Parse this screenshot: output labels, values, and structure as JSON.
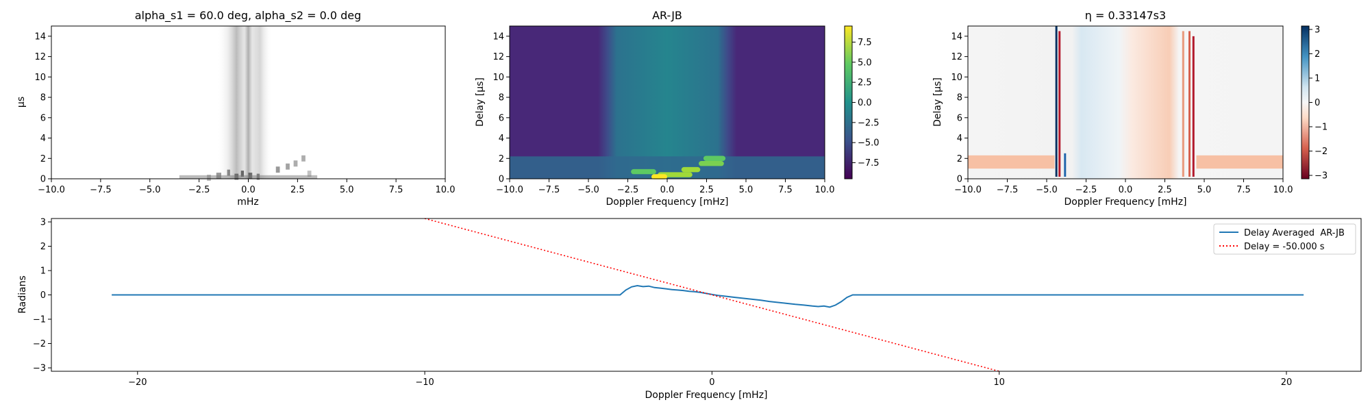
{
  "chart_data": [
    {
      "id": "panel1",
      "type": "heatmap",
      "title": "alpha_s1 = 60.0 deg, alpha_s2 = 0.0 deg",
      "xlabel": "mHz",
      "ylabel": "µs",
      "xlim": [
        -10.0,
        10.0
      ],
      "ylim": [
        0,
        15
      ],
      "xticks": [
        "−10.0",
        "−7.5",
        "−5.0",
        "−2.5",
        "0.0",
        "2.5",
        "5.0",
        "7.5",
        "10.0"
      ],
      "xtick_values": [
        -10,
        -7.5,
        -5,
        -2.5,
        0,
        2.5,
        5,
        7.5,
        10
      ],
      "yticks": [
        "0",
        "2",
        "4",
        "6",
        "8",
        "10",
        "12",
        "14"
      ],
      "ytick_values": [
        0,
        2,
        4,
        6,
        8,
        10,
        12,
        14
      ],
      "colormap": "Greys"
    },
    {
      "id": "panel2",
      "type": "heatmap",
      "title": "AR-JB",
      "xlabel": "Doppler Frequency [mHz]",
      "ylabel": "Delay [µs]",
      "xlim": [
        -10.0,
        10.0
      ],
      "ylim": [
        0,
        15
      ],
      "xticks": [
        "−10.0",
        "−7.5",
        "−5.0",
        "−2.5",
        "0.0",
        "2.5",
        "5.0",
        "7.5",
        "10.0"
      ],
      "xtick_values": [
        -10,
        -7.5,
        -5,
        -2.5,
        0,
        2.5,
        5,
        7.5,
        10
      ],
      "yticks": [
        "0",
        "2",
        "4",
        "6",
        "8",
        "10",
        "12",
        "14"
      ],
      "ytick_values": [
        0,
        2,
        4,
        6,
        8,
        10,
        12,
        14
      ],
      "colormap": "viridis",
      "colorbar": {
        "range": [
          -9.5,
          9.5
        ],
        "ticks": [
          "7.5",
          "5.0",
          "2.5",
          "0.0",
          "−2.5",
          "−5.0",
          "−7.5"
        ],
        "tick_values": [
          7.5,
          5.0,
          2.5,
          0.0,
          -2.5,
          -5.0,
          -7.5
        ]
      }
    },
    {
      "id": "panel3",
      "type": "heatmap",
      "title": "η = 0.33147s3",
      "xlabel": "Doppler Frequency [mHz]",
      "ylabel": "Delay [µs]",
      "xlim": [
        -10.0,
        10.0
      ],
      "ylim": [
        0,
        15
      ],
      "xticks": [
        "−10.0",
        "−7.5",
        "−5.0",
        "−2.5",
        "0.0",
        "2.5",
        "5.0",
        "7.5",
        "10.0"
      ],
      "xtick_values": [
        -10,
        -7.5,
        -5,
        -2.5,
        0,
        2.5,
        5,
        7.5,
        10
      ],
      "yticks": [
        "0",
        "2",
        "4",
        "6",
        "8",
        "10",
        "12",
        "14"
      ],
      "ytick_values": [
        0,
        2,
        4,
        6,
        8,
        10,
        12,
        14
      ],
      "colormap": "RdBu",
      "colorbar": {
        "range": [
          -3.14,
          3.14
        ],
        "ticks": [
          "3",
          "2",
          "1",
          "0",
          "−1",
          "−2",
          "−3"
        ],
        "tick_values": [
          3,
          2,
          1,
          0,
          -1,
          -2,
          -3
        ]
      }
    },
    {
      "id": "panel4",
      "type": "line",
      "xlabel": "Doppler Frequency [mHz]",
      "ylabel": "Radians",
      "xlim": [
        -23.0,
        22.6
      ],
      "ylim": [
        -3.14,
        3.14
      ],
      "xticks": [
        "−20",
        "−10",
        "0",
        "10",
        "20"
      ],
      "xtick_values": [
        -20,
        -10,
        0,
        10,
        20
      ],
      "yticks": [
        "3",
        "2",
        "1",
        "0",
        "−1",
        "−2",
        "−3"
      ],
      "ytick_values": [
        3,
        2,
        1,
        0,
        -1,
        -2,
        -3
      ],
      "legend": "top-right",
      "series": [
        {
          "name": "Delay Averaged  AR-JB",
          "color": "#1f77b4",
          "style": "solid",
          "x": [
            -20.9,
            -3.2,
            -3.0,
            -2.8,
            -2.6,
            -2.4,
            -2.2,
            -2.0,
            -1.8,
            -1.6,
            -1.4,
            -1.2,
            -1.0,
            -0.8,
            -0.6,
            -0.4,
            -0.2,
            0.0,
            0.2,
            0.5,
            0.8,
            1.1,
            1.4,
            1.7,
            2.0,
            2.3,
            2.6,
            2.9,
            3.2,
            3.5,
            3.7,
            3.9,
            4.1,
            4.3,
            4.5,
            4.7,
            4.9,
            20.6
          ],
          "y": [
            0.0,
            0.0,
            0.2,
            0.33,
            0.38,
            0.34,
            0.36,
            0.3,
            0.28,
            0.25,
            0.22,
            0.2,
            0.18,
            0.15,
            0.13,
            0.1,
            0.06,
            0.02,
            -0.02,
            -0.06,
            -0.1,
            -0.14,
            -0.18,
            -0.22,
            -0.27,
            -0.31,
            -0.35,
            -0.39,
            -0.42,
            -0.46,
            -0.48,
            -0.46,
            -0.5,
            -0.42,
            -0.28,
            -0.1,
            0.0,
            0.0
          ]
        },
        {
          "name": "Delay = -50.000 s",
          "color": "#ff0000",
          "style": "dotted",
          "slope": -0.314,
          "intercept": 0.0
        }
      ]
    }
  ]
}
